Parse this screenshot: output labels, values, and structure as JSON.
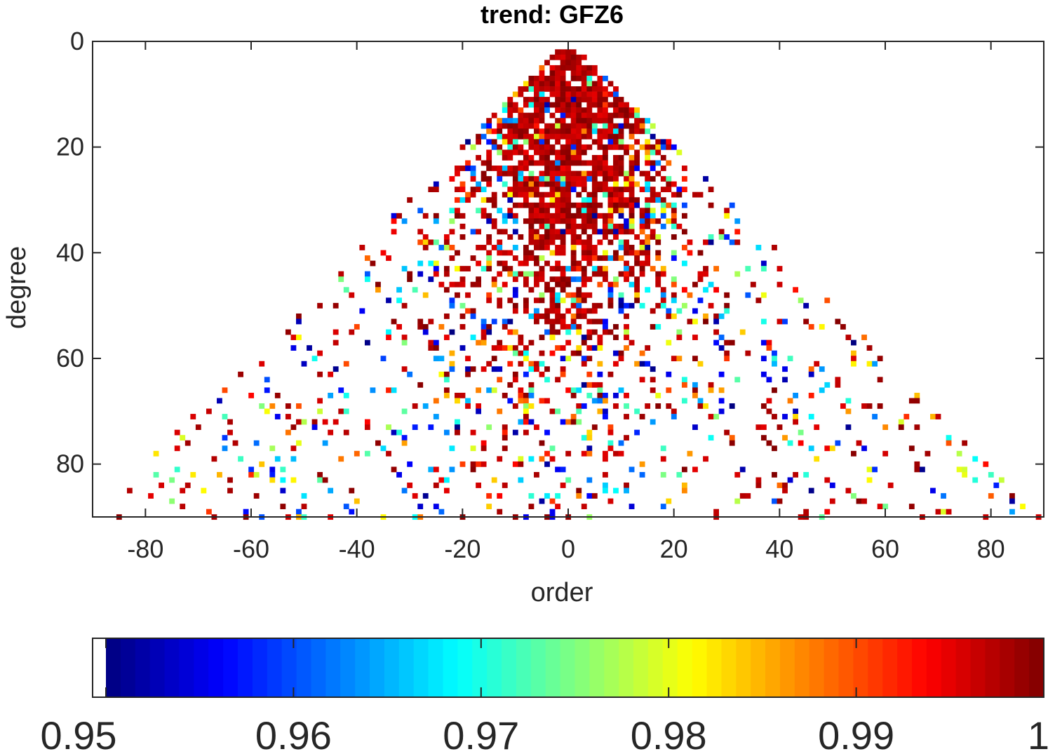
{
  "chart_data": {
    "type": "heatmap",
    "title": "trend: GFZ6",
    "xlabel": "order",
    "ylabel": "degree",
    "xlim": [
      -90,
      90
    ],
    "ylim": [
      0,
      90
    ],
    "y_reversed": true,
    "xticks": [
      -80,
      -60,
      -40,
      -20,
      0,
      20,
      40,
      60,
      80
    ],
    "yticks": [
      0,
      20,
      40,
      60,
      80
    ],
    "grid": false,
    "colormap": "jet",
    "colorbar": {
      "orientation": "horizontal",
      "placement": "bottom",
      "clim": [
        0.95,
        1
      ],
      "ticks": [
        "0.95",
        "0.96",
        "0.97",
        "0.98",
        "0.99",
        "1"
      ],
      "below_range_color": "#ffffff"
    },
    "cells_summary": "Values per (order, degree) cell for degrees 2-90 and orders -degree..degree; cells near order 0 and low degrees mostly at 0.995-1.0 (dark red), scattered values across the colormap toward the triangle edges, many cells below 0.95 shown white."
  }
}
